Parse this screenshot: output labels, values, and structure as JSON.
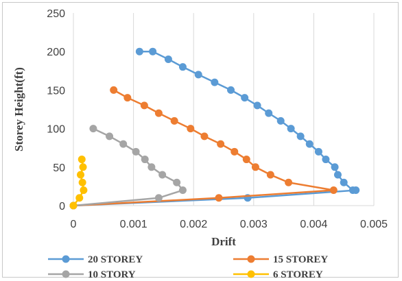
{
  "chart_data": {
    "type": "line",
    "title": "",
    "xlabel": "Drift",
    "ylabel": "Storey Height(ft)",
    "xlim": [
      0,
      0.005
    ],
    "ylim": [
      0,
      250
    ],
    "x_ticks": [
      "0",
      "0.001",
      "0.002",
      "0.003",
      "0.004",
      "0.005"
    ],
    "y_ticks": [
      "0",
      "50",
      "100",
      "150",
      "200",
      "250"
    ],
    "grid": "vertical",
    "legend_position": "bottom",
    "series": [
      {
        "name": "20 STOREY",
        "color": "#5b9bd5",
        "points": [
          [
            0,
            0
          ],
          [
            0.0029,
            10
          ],
          [
            0.0047,
            20
          ],
          [
            0.00465,
            20
          ],
          [
            0.0045,
            30
          ],
          [
            0.0044,
            40
          ],
          [
            0.00435,
            50
          ],
          [
            0.0042,
            60
          ],
          [
            0.00408,
            70
          ],
          [
            0.00393,
            80
          ],
          [
            0.00378,
            90
          ],
          [
            0.00362,
            100
          ],
          [
            0.00345,
            110
          ],
          [
            0.00325,
            120
          ],
          [
            0.00306,
            130
          ],
          [
            0.00285,
            140
          ],
          [
            0.00262,
            150
          ],
          [
            0.00235,
            160
          ],
          [
            0.00208,
            170
          ],
          [
            0.00182,
            180
          ],
          [
            0.00158,
            190
          ],
          [
            0.00132,
            200
          ],
          [
            0.0011,
            200
          ]
        ]
      },
      {
        "name": "15 STOREY",
        "color": "#ed7d31",
        "points": [
          [
            0,
            0
          ],
          [
            0.00242,
            10
          ],
          [
            0.00433,
            20
          ],
          [
            0.00358,
            30
          ],
          [
            0.00328,
            40
          ],
          [
            0.00303,
            50
          ],
          [
            0.00288,
            60
          ],
          [
            0.00268,
            70
          ],
          [
            0.00245,
            80
          ],
          [
            0.00218,
            90
          ],
          [
            0.00195,
            100
          ],
          [
            0.00168,
            110
          ],
          [
            0.00142,
            120
          ],
          [
            0.00118,
            130
          ],
          [
            0.0009,
            140
          ],
          [
            0.00067,
            150
          ]
        ]
      },
      {
        "name": "10 STORY",
        "color": "#a5a5a5",
        "points": [
          [
            0,
            0
          ],
          [
            0.00142,
            10
          ],
          [
            0.00182,
            20
          ],
          [
            0.00172,
            30
          ],
          [
            0.00148,
            40
          ],
          [
            0.0013,
            50
          ],
          [
            0.00119,
            60
          ],
          [
            0.00104,
            70
          ],
          [
            0.00083,
            80
          ],
          [
            0.0006,
            90
          ],
          [
            0.00033,
            100
          ]
        ]
      },
      {
        "name": "6 STOREY",
        "color": "#ffc000",
        "points": [
          [
            0,
            0
          ],
          [
            0.0001,
            10
          ],
          [
            0.00017,
            20
          ],
          [
            0.00015,
            30
          ],
          [
            0.00012,
            40
          ],
          [
            0.00016,
            50
          ],
          [
            0.00014,
            60
          ]
        ]
      }
    ]
  }
}
